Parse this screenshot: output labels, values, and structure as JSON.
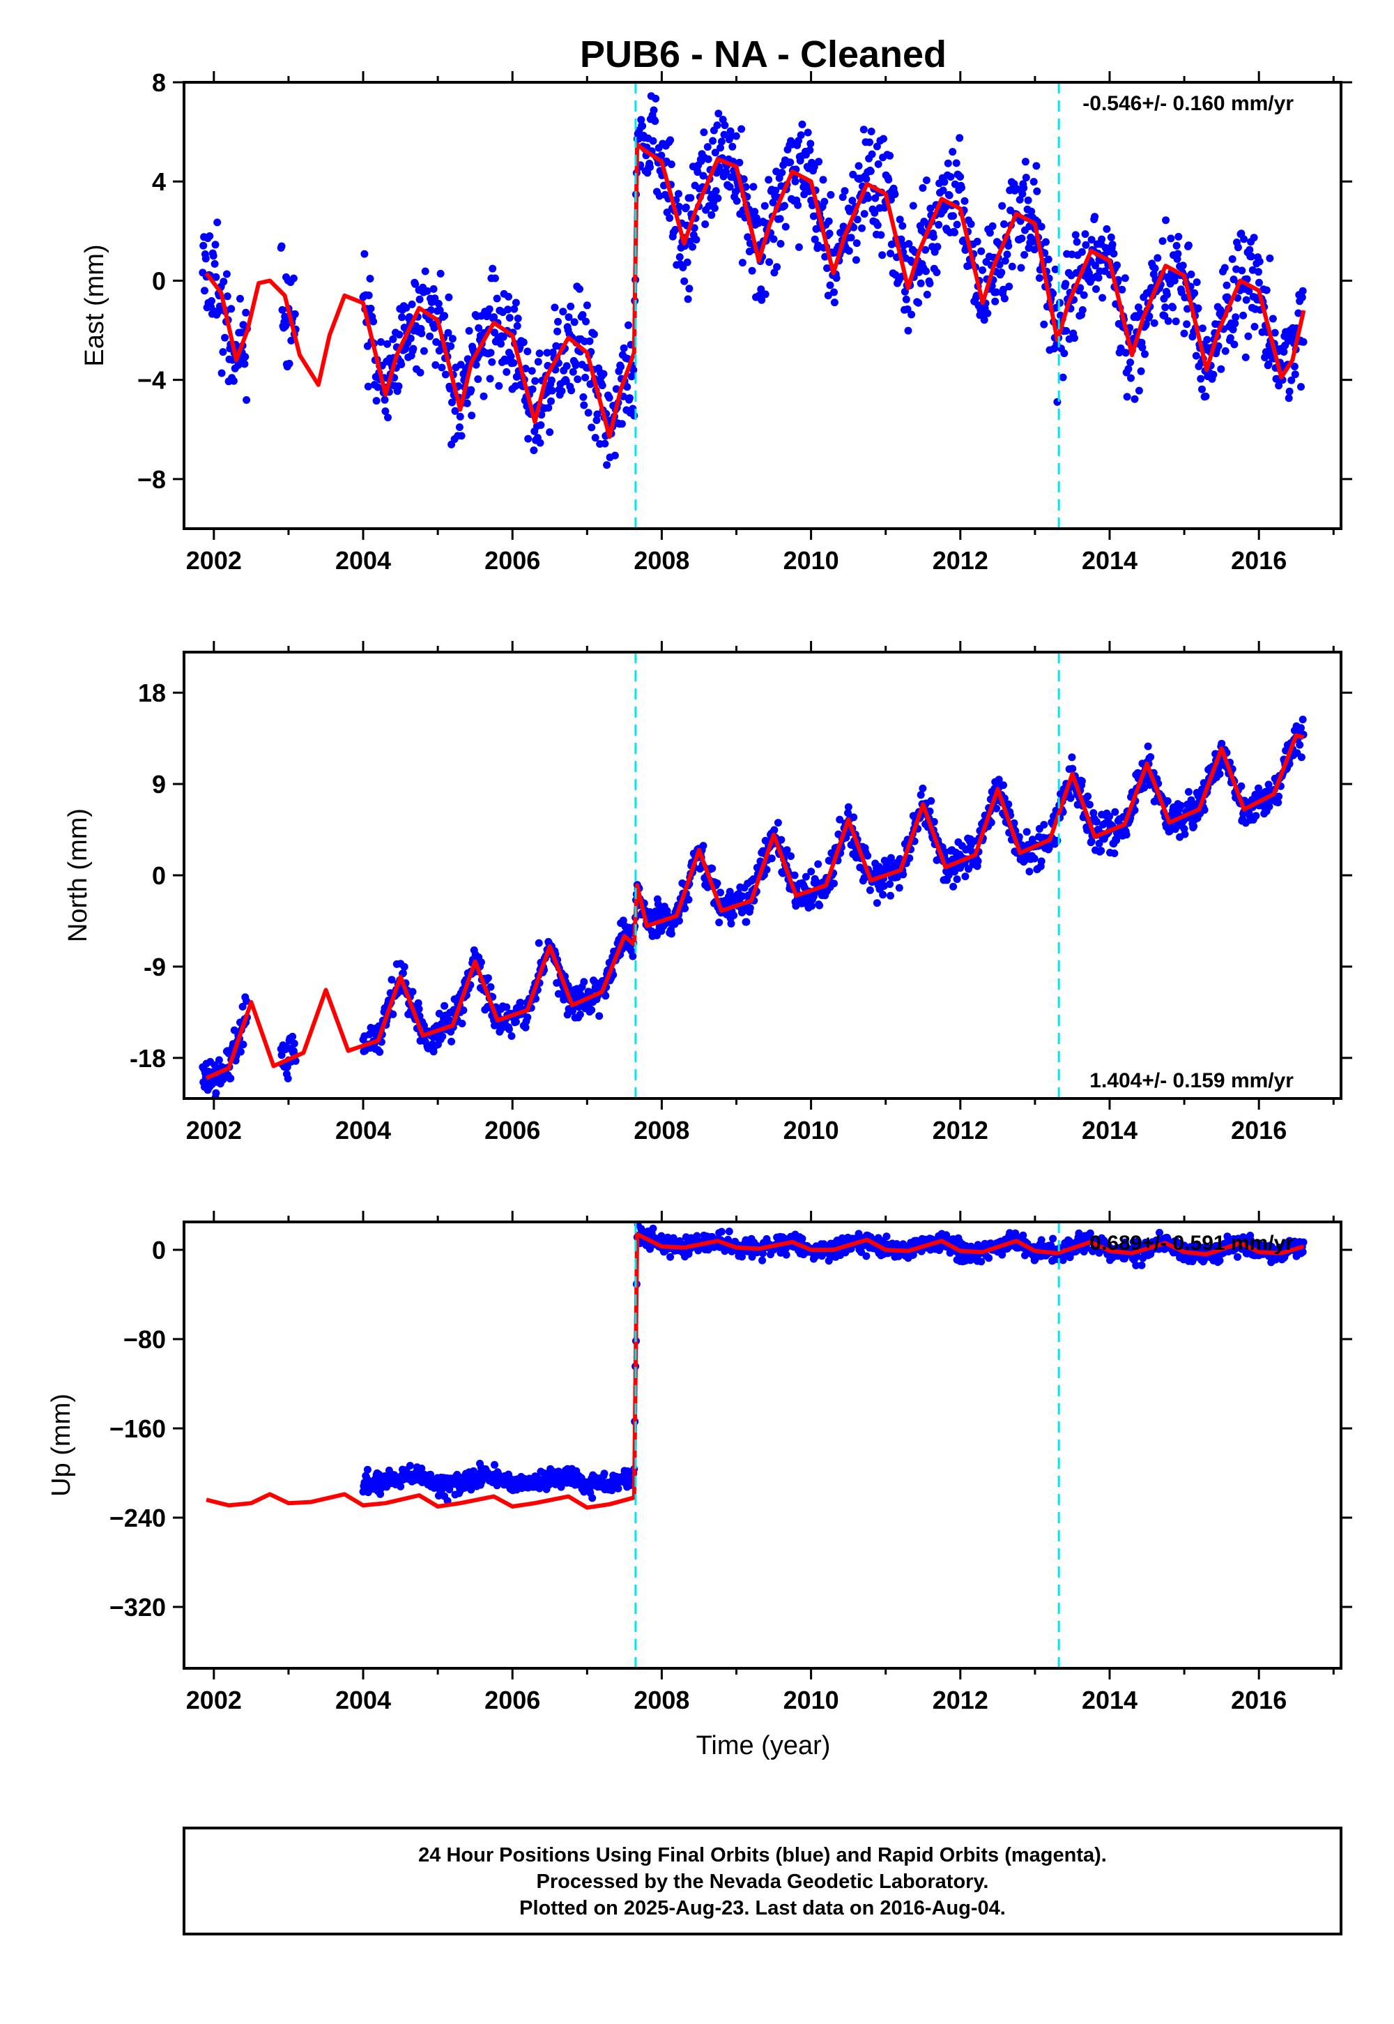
{
  "title": "PUB6  - NA - Cleaned",
  "xlabel": "Time (year)",
  "footer": {
    "line1": "24 Hour Positions Using Final Orbits (blue) and Rapid Orbits (magenta).",
    "line2": "Processed by the Nevada Geodetic Laboratory.",
    "line3": "Plotted on 2025-Aug-23. Last data on 2016-Aug-04."
  },
  "colors": {
    "points": "#0000ff",
    "fit": "#ff0000",
    "breaks": "#00e5ee"
  },
  "chart_data": [
    {
      "type": "scatter",
      "ylabel": "East (mm)",
      "rate": "-0.546+/- 0.160 mm/yr",
      "xlim": [
        2001.6,
        2017.1
      ],
      "ylim": [
        -10,
        8
      ],
      "yticks": [
        8,
        4,
        0,
        -4,
        -8
      ],
      "ytick_labels": [
        "8",
        "4",
        "0",
        "−4",
        "−8"
      ],
      "xticks": [
        2002,
        2004,
        2006,
        2008,
        2010,
        2012,
        2014,
        2016
      ],
      "xtick_labels": [
        "2002",
        "2004",
        "2006",
        "2008",
        "2010",
        "2012",
        "2014",
        "2016"
      ],
      "breaks": [
        2007.65,
        2013.32
      ],
      "series": [
        {
          "x": [
            2001.9,
            2002.1,
            2002.3,
            2002.45,
            2002.6,
            2002.75,
            2002.95,
            2003.15,
            2003.4,
            2003.55,
            2003.75,
            2004.0,
            2004.3,
            2004.45,
            2004.75,
            2005.0,
            2005.3,
            2005.45,
            2005.75,
            2006.0,
            2006.3,
            2006.45,
            2006.75,
            2007.0,
            2007.3,
            2007.45,
            2007.63,
            2007.67,
            2007.75,
            2008.0,
            2008.3,
            2008.45,
            2008.75,
            2009.0,
            2009.3,
            2009.45,
            2009.75,
            2010.0,
            2010.3,
            2010.45,
            2010.75,
            2011.0,
            2011.3,
            2011.45,
            2011.75,
            2012.0,
            2012.3,
            2012.45,
            2012.75,
            2013.0,
            2013.3,
            2013.45,
            2013.75,
            2014.0,
            2014.3,
            2014.45,
            2014.75,
            2015.0,
            2015.3,
            2015.45,
            2015.75,
            2016.0,
            2016.3,
            2016.45,
            2016.6
          ],
          "y": [
            0.3,
            -0.5,
            -3.2,
            -2.0,
            -0.1,
            0.0,
            -0.6,
            -3.0,
            -4.2,
            -2.2,
            -0.6,
            -0.9,
            -4.6,
            -3.0,
            -1.1,
            -1.6,
            -5.2,
            -3.3,
            -1.7,
            -2.2,
            -5.7,
            -3.9,
            -2.3,
            -2.9,
            -6.3,
            -4.4,
            -2.9,
            5.5,
            5.3,
            4.8,
            1.5,
            2.8,
            4.9,
            4.6,
            0.8,
            2.3,
            4.4,
            4.0,
            0.3,
            1.8,
            3.9,
            3.5,
            -0.3,
            1.2,
            3.3,
            2.9,
            -0.9,
            0.6,
            2.7,
            2.3,
            -2.4,
            -0.9,
            1.2,
            0.8,
            -3.0,
            -1.5,
            0.6,
            0.2,
            -3.6,
            -2.1,
            0.0,
            -0.4,
            -3.9,
            -3.2,
            -1.2
          ]
        }
      ]
    },
    {
      "type": "scatter",
      "ylabel": "North (mm)",
      "rate": "1.404+/- 0.159 mm/yr",
      "xlim": [
        2001.6,
        2017.1
      ],
      "ylim": [
        -22,
        22
      ],
      "yticks": [
        18,
        9,
        0,
        -9,
        -18
      ],
      "ytick_labels": [
        "18",
        "9",
        "0",
        "-9",
        "-18"
      ],
      "xticks": [
        2002,
        2004,
        2006,
        2008,
        2010,
        2012,
        2014,
        2016
      ],
      "xtick_labels": [
        "2002",
        "2004",
        "2006",
        "2008",
        "2010",
        "2012",
        "2014",
        "2016"
      ],
      "breaks": [
        2007.65,
        2013.32
      ],
      "series": [
        {
          "x": [
            2001.9,
            2002.2,
            2002.5,
            2002.8,
            2003.2,
            2003.5,
            2003.8,
            2004.2,
            2004.5,
            2004.8,
            2005.2,
            2005.5,
            2005.8,
            2006.2,
            2006.5,
            2006.8,
            2007.2,
            2007.5,
            2007.63,
            2007.67,
            2007.8,
            2008.2,
            2008.5,
            2008.8,
            2009.2,
            2009.5,
            2009.8,
            2010.2,
            2010.5,
            2010.8,
            2011.2,
            2011.5,
            2011.8,
            2012.2,
            2012.5,
            2012.8,
            2013.2,
            2013.5,
            2013.8,
            2014.2,
            2014.5,
            2014.8,
            2015.2,
            2015.5,
            2015.8,
            2016.2,
            2016.5,
            2016.6
          ],
          "y": [
            -20,
            -19,
            -12.5,
            -18.8,
            -17.5,
            -11.3,
            -17.3,
            -16.3,
            -10.0,
            -15.8,
            -14.8,
            -8.5,
            -14.3,
            -13.3,
            -7.0,
            -12.8,
            -11.5,
            -6.0,
            -6.8,
            -1.0,
            -5.0,
            -4.0,
            2.5,
            -3.5,
            -2.5,
            4.0,
            -2.0,
            -1.0,
            5.5,
            -0.5,
            0.5,
            7.0,
            0.8,
            2.0,
            8.5,
            2.2,
            3.5,
            10.0,
            3.8,
            5.0,
            11.0,
            5.2,
            6.5,
            12.5,
            6.5,
            8.0,
            13.8,
            13.6
          ]
        }
      ]
    },
    {
      "type": "scatter",
      "ylabel": "Up (mm)",
      "rate": "0.689+/- 0.591 mm/yr",
      "xlim": [
        2001.6,
        2017.1
      ],
      "ylim": [
        -375,
        25
      ],
      "yticks": [
        0,
        -80,
        -160,
        -240,
        -320
      ],
      "ytick_labels": [
        "0",
        "−80",
        "−160",
        "−240",
        "−320"
      ],
      "xticks": [
        2002,
        2004,
        2006,
        2008,
        2010,
        2012,
        2014,
        2016
      ],
      "xtick_labels": [
        "2002",
        "2004",
        "2006",
        "2008",
        "2010",
        "2012",
        "2014",
        "2016"
      ],
      "breaks": [
        2007.65,
        2013.32
      ],
      "series": [
        {
          "x": [
            2001.9,
            2002.2,
            2002.5,
            2002.75,
            2003.0,
            2003.3,
            2003.75,
            2004.0,
            2004.3,
            2004.75,
            2005.0,
            2005.3,
            2005.75,
            2006.0,
            2006.3,
            2006.75,
            2007.0,
            2007.3,
            2007.63,
            2007.67,
            2008.0,
            2008.3,
            2008.75,
            2009.0,
            2009.3,
            2009.75,
            2010.0,
            2010.3,
            2010.75,
            2011.0,
            2011.3,
            2011.75,
            2012.0,
            2012.3,
            2012.75,
            2013.0,
            2013.3,
            2013.75,
            2014.0,
            2014.3,
            2014.75,
            2015.0,
            2015.3,
            2015.75,
            2016.0,
            2016.3,
            2016.6
          ],
          "y": [
            -224,
            -229,
            -227,
            -219,
            -227,
            -226,
            -219,
            -229,
            -227,
            -220,
            -230,
            -227,
            -221,
            -230,
            -227,
            -221,
            -231,
            -228,
            -222,
            14,
            3,
            2,
            8,
            2,
            1,
            7,
            0,
            0,
            9,
            0,
            -1,
            8,
            -1,
            -2,
            8,
            -1,
            -3,
            7,
            -1,
            -3,
            6,
            -2,
            -4,
            6,
            -2,
            -3,
            3
          ]
        }
      ]
    }
  ]
}
